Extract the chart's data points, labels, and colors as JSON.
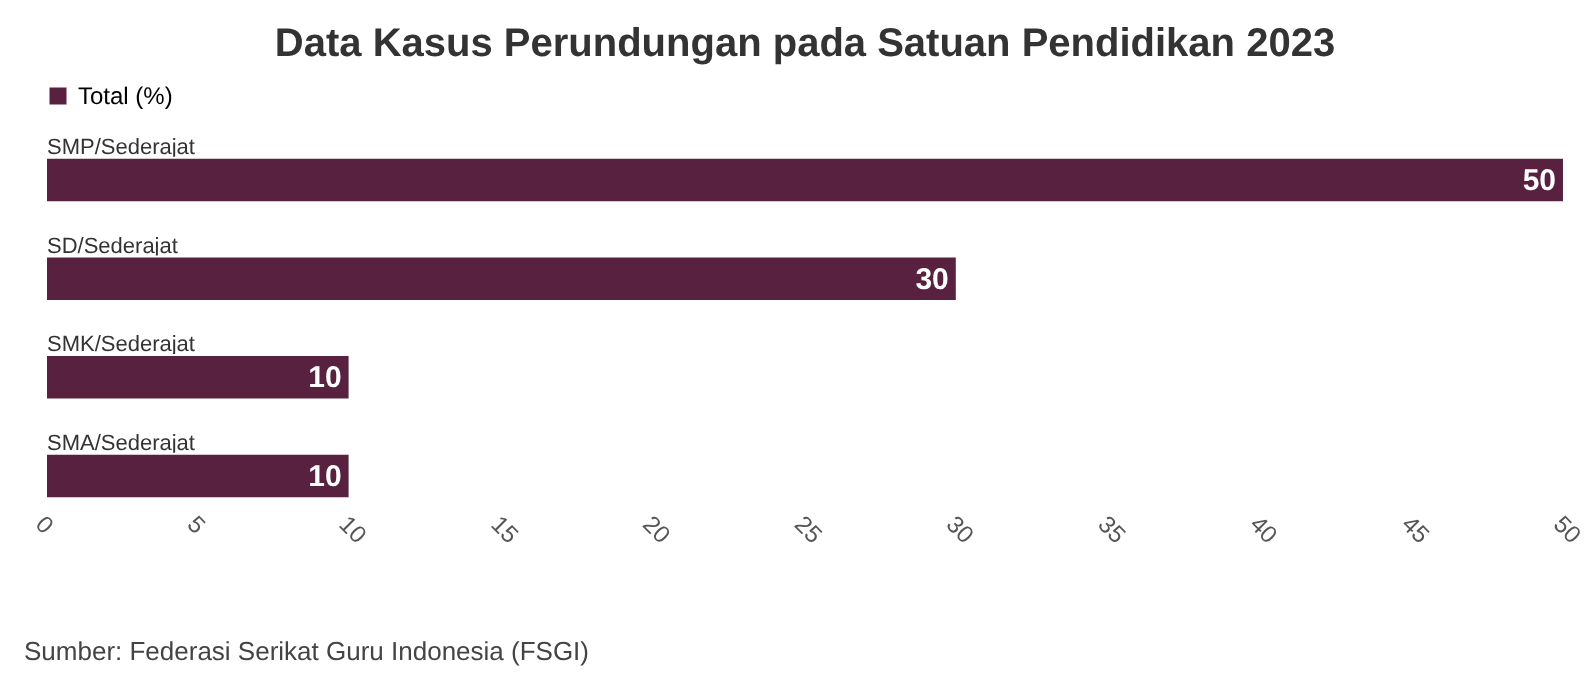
{
  "chart_data": {
    "type": "bar",
    "orientation": "horizontal",
    "title": "Data Kasus Perundungan pada Satuan Pendidikan 2023",
    "categories": [
      "SMP/Sederajat",
      "SD/Sederajat",
      "SMK/Sederajat",
      "SMA/Sederajat"
    ],
    "series": [
      {
        "name": "Total (%)",
        "color": "#58213f",
        "values": [
          50,
          30,
          10,
          10
        ]
      }
    ],
    "xlim": [
      0,
      50
    ],
    "xticks": [
      0,
      5,
      10,
      15,
      20,
      25,
      30,
      35,
      40,
      45,
      50
    ],
    "data_labels": true,
    "legend": "top",
    "grid": false,
    "annotations": [
      "Sumber: Federasi Serikat Guru Indonesia (FSGI)"
    ]
  }
}
